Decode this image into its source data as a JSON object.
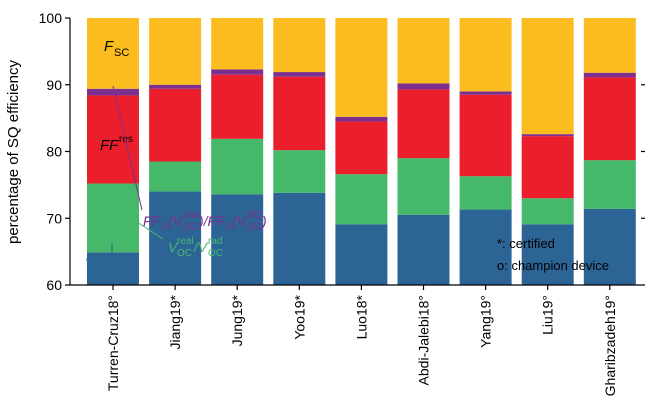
{
  "chart_data": {
    "type": "bar",
    "stacked": true,
    "ylabel": "percentage of SQ efficiency",
    "ylim": [
      60,
      100
    ],
    "yticks": [
      "60",
      "70",
      "80",
      "90",
      "100"
    ],
    "ytick_values": [
      60,
      70,
      80,
      90,
      100
    ],
    "categories": [
      "Turren-Cruz18°",
      "Jiang19*",
      "Jung19*",
      "Yoo19*",
      "Luo18*",
      "Abdi-Jalebi18°",
      "Yang19°",
      "Liu19°",
      "Gharibzadeh19°"
    ],
    "boundaries": [
      {
        "blue_top": 64.9,
        "green_top": 75.2,
        "red_top": 88.4,
        "purple_top": 89.4
      },
      {
        "blue_top": 74.0,
        "green_top": 78.5,
        "red_top": 89.4,
        "purple_top": 90.0
      },
      {
        "blue_top": 73.6,
        "green_top": 81.9,
        "red_top": 91.5,
        "purple_top": 92.3
      },
      {
        "blue_top": 73.8,
        "green_top": 80.2,
        "red_top": 91.2,
        "purple_top": 91.9
      },
      {
        "blue_top": 69.1,
        "green_top": 76.6,
        "red_top": 84.5,
        "purple_top": 85.2
      },
      {
        "blue_top": 70.5,
        "green_top": 79.0,
        "red_top": 89.3,
        "purple_top": 90.2
      },
      {
        "blue_top": 71.3,
        "green_top": 76.3,
        "red_top": 88.5,
        "purple_top": 89.0
      },
      {
        "blue_top": 69.1,
        "green_top": 73.0,
        "red_top": 82.3,
        "purple_top": 82.6
      },
      {
        "blue_top": 71.4,
        "green_top": 78.7,
        "red_top": 91.1,
        "purple_top": 91.8
      }
    ],
    "series_colors": {
      "blue": "#2d6496",
      "green": "#45b86a",
      "red": "#ea1f2b",
      "purple": "#7c2f8e",
      "yellow": "#fbbc1f"
    },
    "annotations": {
      "fsc": "F_SC",
      "ffres": "FF^res",
      "ff0": "FF0(V_OC^real)/FF0(V_OC^SQ)",
      "vreal": "V_OC^real/V_OC^rad",
      "vrad": "V_OC^rad/V_OC^SQ"
    },
    "legend_note_1": "*: certified",
    "legend_note_2": "o: champion device"
  }
}
